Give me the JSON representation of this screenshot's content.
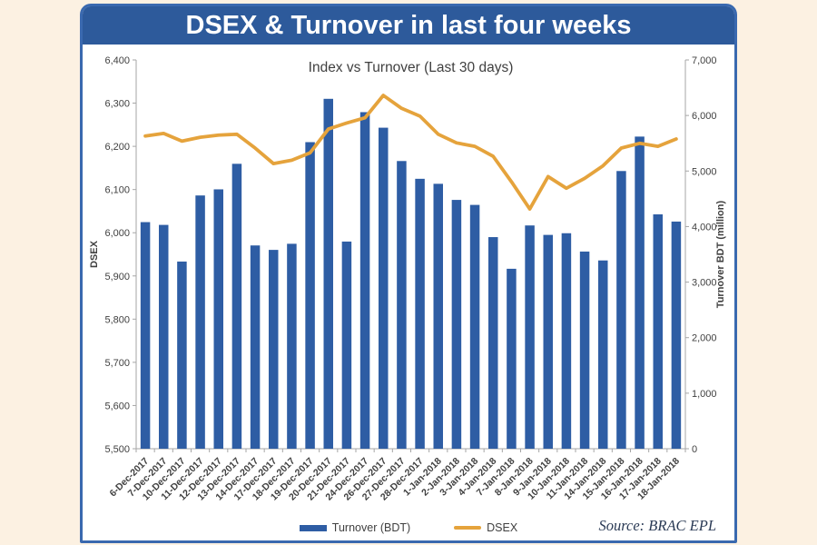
{
  "header": {
    "title": "DSEX & Turnover in last four weeks",
    "background_color": "#2d5a9b",
    "text_color": "#ffffff"
  },
  "page": {
    "background_color": "#fcf1e2",
    "card_border_color": "#3a69af"
  },
  "chart_data": {
    "type": "combo",
    "title": "Index vs Turnover (Last 30 days)",
    "grid": false,
    "legend_position": "bottom",
    "categories": [
      "6-Dec-2017",
      "7-Dec-2017",
      "10-Dec-2017",
      "11-Dec-2017",
      "12-Dec-2017",
      "13-Dec-2017",
      "14-Dec-2017",
      "17-Dec-2017",
      "18-Dec-2017",
      "19-Dec-2017",
      "20-Dec-2017",
      "21-Dec-2017",
      "24-Dec-2017",
      "26-Dec-2017",
      "27-Dec-2017",
      "28-Dec-2017",
      "1-Jan-2018",
      "2-Jan-2018",
      "3-Jan-2018",
      "4-Jan-2018",
      "7-Jan-2018",
      "8-Jan-2018",
      "9-Jan-2018",
      "10-Jan-2018",
      "11-Jan-2018",
      "14-Jan-2018",
      "15-Jan-2018",
      "16-Jan-2018",
      "17-Jan-2018",
      "18-Jan-2018"
    ],
    "series": [
      {
        "name": "Turnover (BDT)",
        "type": "bar",
        "axis": "right",
        "color": "#2e5da4",
        "values": [
          4080,
          4030,
          3370,
          4560,
          4670,
          5130,
          3660,
          3580,
          3690,
          5520,
          6300,
          3730,
          6060,
          5780,
          5180,
          4860,
          4770,
          4480,
          4390,
          3810,
          3240,
          4020,
          3850,
          3880,
          3550,
          3390,
          5000,
          5620,
          4220,
          4090
        ]
      },
      {
        "name": "DSEX",
        "type": "line",
        "axis": "left",
        "color": "#e5a33c",
        "values": [
          6224,
          6230,
          6212,
          6221,
          6226,
          6228,
          6196,
          6160,
          6168,
          6185,
          6240,
          6254,
          6266,
          6318,
          6288,
          6270,
          6228,
          6208,
          6200,
          6177,
          6118,
          6055,
          6130,
          6103,
          6126,
          6155,
          6196,
          6207,
          6200,
          6217
        ]
      }
    ],
    "left_axis": {
      "label": "DSEX",
      "min": 5500,
      "max": 6400,
      "tick_step": 100,
      "tick_labels": [
        "6,400",
        "6,300",
        "6,200",
        "6,100",
        "6,000",
        "5,900",
        "5,800",
        "5,700",
        "5,600",
        "5,500"
      ]
    },
    "right_axis": {
      "label": "Turnover BDT (million)",
      "min": 0,
      "max": 7000,
      "tick_step": 1000,
      "tick_labels": [
        "7,000",
        "6,000",
        "5,000",
        "4,000",
        "3,000",
        "2,000",
        "1,000",
        "0"
      ]
    }
  },
  "legend": {
    "items": [
      {
        "label": "Turnover (BDT)",
        "swatch": "bar"
      },
      {
        "label": "DSEX",
        "swatch": "line"
      }
    ]
  },
  "footer": {
    "source": "Source: BRAC EPL"
  }
}
